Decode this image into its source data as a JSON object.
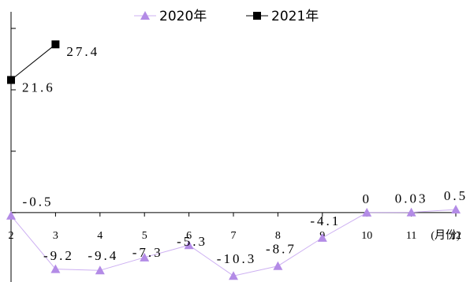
{
  "chart_data": {
    "type": "line",
    "x_label": "(月份)",
    "categories": [
      "2",
      "3",
      "4",
      "5",
      "6",
      "7",
      "8",
      "9",
      "10",
      "11",
      "12"
    ],
    "series": [
      {
        "name": "2020年",
        "color": "#b38be6",
        "marker": "triangle",
        "values": [
          -0.5,
          -9.2,
          -9.4,
          -7.3,
          -5.3,
          -10.3,
          -8.7,
          -4.1,
          0,
          0.03,
          0.5
        ]
      },
      {
        "name": "2021年",
        "color": "#000000",
        "marker": "square",
        "values": [
          21.6,
          27.4,
          null,
          null,
          null,
          null,
          null,
          null,
          null,
          null,
          null
        ]
      }
    ],
    "ylim": [
      -11.3,
      32.7
    ],
    "yticks": [
      0,
      10,
      20,
      30
    ],
    "legend": "top"
  }
}
